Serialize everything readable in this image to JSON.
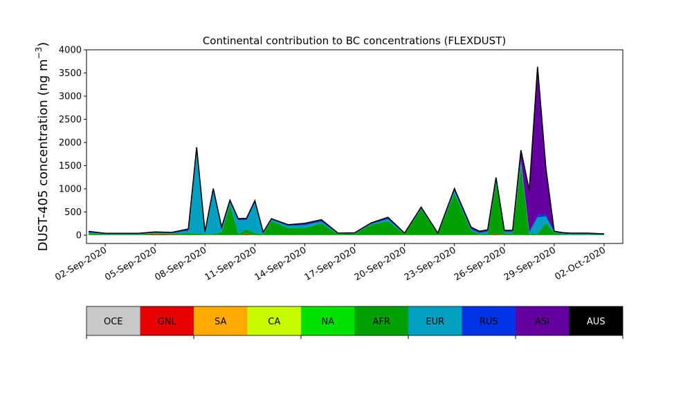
{
  "chart_data": {
    "type": "area",
    "stacked": true,
    "title": "Continental contribution to BC concentrations (FLEXDUST)",
    "ylabel": "DUST-405 concentration (ng m",
    "ylabel_exp": "−3",
    "ylabel_close": ")",
    "xlabel": "",
    "ylim": [
      0,
      4000
    ],
    "yticks": [
      "0",
      "500",
      "1000",
      "1500",
      "2000",
      "2500",
      "3000",
      "3500",
      "4000"
    ],
    "xlim": [
      "2020-08-31T21:00",
      "2020-10-03T03:00"
    ],
    "xticks": [
      {
        "date": "2020-09-02",
        "label": "02-Sep-2020"
      },
      {
        "date": "2020-09-05",
        "label": "05-Sep-2020"
      },
      {
        "date": "2020-09-08",
        "label": "08-Sep-2020"
      },
      {
        "date": "2020-09-11",
        "label": "11-Sep-2020"
      },
      {
        "date": "2020-09-14",
        "label": "14-Sep-2020"
      },
      {
        "date": "2020-09-17",
        "label": "17-Sep-2020"
      },
      {
        "date": "2020-09-20",
        "label": "20-Sep-2020"
      },
      {
        "date": "2020-09-23",
        "label": "23-Sep-2020"
      },
      {
        "date": "2020-09-26",
        "label": "26-Sep-2020"
      },
      {
        "date": "2020-09-29",
        "label": "29-Sep-2020"
      },
      {
        "date": "2020-10-02",
        "label": "02-Oct-2020"
      }
    ],
    "grid": false,
    "legend": "bottom colorbar",
    "x": [
      "2020-09-01",
      "2020-09-02",
      "2020-09-03",
      "2020-09-04",
      "2020-09-05",
      "2020-09-06",
      "2020-09-07",
      "2020-09-07T12:00",
      "2020-09-08",
      "2020-09-08T12:00",
      "2020-09-09",
      "2020-09-09T12:00",
      "2020-09-10",
      "2020-09-10T12:00",
      "2020-09-11",
      "2020-09-11T12:00",
      "2020-09-12",
      "2020-09-13",
      "2020-09-14",
      "2020-09-15",
      "2020-09-16",
      "2020-09-17",
      "2020-09-18",
      "2020-09-19",
      "2020-09-20",
      "2020-09-21",
      "2020-09-22",
      "2020-09-23",
      "2020-09-24",
      "2020-09-24T12:00",
      "2020-09-25",
      "2020-09-25T12:00",
      "2020-09-26",
      "2020-09-26T12:00",
      "2020-09-27",
      "2020-09-27T12:00",
      "2020-09-28",
      "2020-09-28T12:00",
      "2020-09-29",
      "2020-09-29T12:00",
      "2020-09-30",
      "2020-10-01",
      "2020-10-02"
    ],
    "series": [
      {
        "name": "OCE",
        "color": "#c8c8c8",
        "values": [
          0,
          0,
          0,
          0,
          0,
          0,
          0,
          0,
          0,
          0,
          0,
          0,
          0,
          0,
          0,
          0,
          0,
          0,
          0,
          0,
          0,
          0,
          0,
          0,
          0,
          0,
          0,
          0,
          0,
          0,
          0,
          0,
          0,
          0,
          0,
          0,
          0,
          0,
          0,
          0,
          0,
          0,
          0
        ]
      },
      {
        "name": "GNL",
        "color": "#e60000",
        "values": [
          0,
          0,
          0,
          0,
          20,
          10,
          0,
          0,
          0,
          0,
          0,
          0,
          0,
          20,
          0,
          0,
          0,
          0,
          0,
          0,
          0,
          0,
          0,
          0,
          0,
          0,
          0,
          0,
          0,
          0,
          0,
          20,
          0,
          0,
          0,
          0,
          0,
          0,
          0,
          0,
          0,
          0,
          0
        ]
      },
      {
        "name": "SA",
        "color": "#ffaa00",
        "values": [
          0,
          0,
          0,
          0,
          0,
          0,
          0,
          0,
          0,
          0,
          0,
          0,
          0,
          0,
          0,
          0,
          0,
          0,
          0,
          0,
          0,
          0,
          0,
          0,
          0,
          0,
          0,
          0,
          0,
          0,
          0,
          0,
          0,
          0,
          0,
          0,
          0,
          0,
          0,
          0,
          0,
          0,
          0
        ]
      },
      {
        "name": "CA",
        "color": "#c8fa00",
        "values": [
          0,
          0,
          0,
          0,
          0,
          0,
          0,
          0,
          0,
          0,
          0,
          0,
          0,
          0,
          0,
          0,
          0,
          0,
          0,
          0,
          0,
          0,
          0,
          0,
          0,
          0,
          0,
          0,
          0,
          0,
          0,
          0,
          0,
          0,
          0,
          0,
          0,
          0,
          0,
          0,
          0,
          0,
          0
        ]
      },
      {
        "name": "NA",
        "color": "#00e100",
        "values": [
          10,
          5,
          5,
          5,
          5,
          5,
          5,
          5,
          5,
          5,
          5,
          5,
          5,
          5,
          5,
          5,
          5,
          5,
          5,
          5,
          5,
          5,
          5,
          5,
          5,
          5,
          5,
          5,
          5,
          5,
          5,
          5,
          5,
          5,
          5,
          5,
          5,
          5,
          5,
          5,
          5,
          5,
          5
        ]
      },
      {
        "name": "AFR",
        "color": "#00a000",
        "values": [
          30,
          10,
          10,
          10,
          20,
          20,
          40,
          30,
          20,
          20,
          60,
          650,
          20,
          100,
          40,
          20,
          300,
          150,
          150,
          250,
          20,
          30,
          220,
          300,
          20,
          550,
          20,
          900,
          100,
          20,
          30,
          1100,
          40,
          30,
          1500,
          20,
          30,
          250,
          50,
          20,
          10,
          10,
          10
        ]
      },
      {
        "name": "EUR",
        "color": "#00a0c0",
        "values": [
          20,
          10,
          10,
          10,
          10,
          10,
          50,
          1800,
          20,
          920,
          60,
          50,
          300,
          200,
          650,
          20,
          30,
          50,
          60,
          40,
          10,
          5,
          20,
          40,
          10,
          20,
          10,
          50,
          20,
          20,
          40,
          50,
          20,
          30,
          100,
          30,
          350,
          150,
          10,
          10,
          10,
          10,
          5
        ]
      },
      {
        "name": "RUS",
        "color": "#0032e6",
        "values": [
          10,
          10,
          10,
          10,
          5,
          10,
          20,
          40,
          20,
          40,
          30,
          30,
          20,
          20,
          30,
          10,
          10,
          10,
          20,
          20,
          5,
          5,
          10,
          20,
          5,
          10,
          5,
          20,
          20,
          20,
          20,
          20,
          20,
          20,
          30,
          20,
          50,
          40,
          10,
          10,
          10,
          10,
          5
        ]
      },
      {
        "name": "ASI",
        "color": "#6400a0",
        "values": [
          10,
          5,
          5,
          5,
          10,
          5,
          20,
          20,
          10,
          20,
          20,
          20,
          10,
          20,
          20,
          10,
          10,
          10,
          20,
          20,
          5,
          5,
          10,
          20,
          5,
          20,
          5,
          30,
          30,
          20,
          20,
          50,
          20,
          20,
          200,
          900,
          3200,
          1000,
          10,
          10,
          10,
          10,
          5
        ]
      },
      {
        "name": "AUS",
        "color": "#000000",
        "values": [
          0,
          0,
          0,
          0,
          0,
          0,
          0,
          0,
          0,
          0,
          0,
          0,
          0,
          0,
          0,
          0,
          0,
          0,
          0,
          0,
          0,
          0,
          0,
          0,
          0,
          0,
          0,
          0,
          0,
          0,
          0,
          0,
          0,
          0,
          0,
          0,
          0,
          0,
          0,
          0,
          0,
          0,
          0
        ]
      }
    ]
  },
  "colorbar": {
    "labels": [
      "OCE",
      "GNL",
      "SA",
      "CA",
      "NA",
      "AFR",
      "EUR",
      "RUS",
      "ASI",
      "AUS"
    ],
    "colors": [
      "#c8c8c8",
      "#e60000",
      "#ffaa00",
      "#c8fa00",
      "#00e100",
      "#00a000",
      "#00a0c0",
      "#0032e6",
      "#6400a0",
      "#000000"
    ],
    "text_colors": [
      "#000000",
      "#000000",
      "#000000",
      "#000000",
      "#000000",
      "#000000",
      "#000000",
      "#000000",
      "#000000",
      "#ffffff"
    ]
  }
}
